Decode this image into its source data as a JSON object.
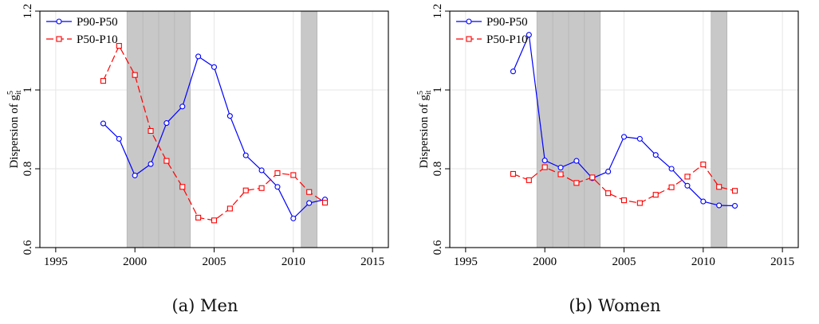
{
  "chart_data": [
    {
      "type": "line",
      "caption": "(a) Men",
      "ylabel_main": "Dispersion of g",
      "ylabel_sup": "5",
      "ylabel_sub": "it",
      "xlim": [
        1994,
        2016
      ],
      "ylim": [
        0.6,
        1.2
      ],
      "xticks": [
        1995,
        2000,
        2005,
        2010,
        2015
      ],
      "yticks": [
        0.6,
        0.8,
        1,
        1.2
      ],
      "ytick_labels": [
        "0.6",
        "0.8",
        "1",
        "1.2"
      ],
      "legend_position": "top-left",
      "grid": true,
      "shaded_periods": [
        [
          1999.5,
          2003.5
        ],
        [
          2010.5,
          2011.5
        ]
      ],
      "series": [
        {
          "name": "P90-P50",
          "color": "#0000ff",
          "marker": "circle",
          "dash": "solid",
          "x": [
            1998,
            1999,
            2000,
            2001,
            2002,
            2003,
            2004,
            2005,
            2006,
            2007,
            2008,
            2009,
            2010,
            2011,
            2012
          ],
          "y": [
            0.915,
            0.876,
            0.783,
            0.812,
            0.916,
            0.958,
            1.085,
            1.058,
            0.934,
            0.834,
            0.796,
            0.754,
            0.674,
            0.713,
            0.722
          ]
        },
        {
          "name": "P50-P10",
          "color": "#ff0000",
          "marker": "square",
          "dash": "dashed",
          "x": [
            1998,
            1999,
            2000,
            2001,
            2002,
            2003,
            2004,
            2005,
            2006,
            2007,
            2008,
            2009,
            2010,
            2011,
            2012
          ],
          "y": [
            1.023,
            1.112,
            1.038,
            0.896,
            0.82,
            0.754,
            0.676,
            0.669,
            0.699,
            0.745,
            0.751,
            0.789,
            0.784,
            0.741,
            0.714
          ]
        }
      ]
    },
    {
      "type": "line",
      "caption": "(b) Women",
      "ylabel_main": "Dispersion of g",
      "ylabel_sup": "5",
      "ylabel_sub": "it",
      "xlim": [
        1994,
        2016
      ],
      "ylim": [
        0.6,
        1.2
      ],
      "xticks": [
        1995,
        2000,
        2005,
        2010,
        2015
      ],
      "yticks": [
        0.6,
        0.8,
        1,
        1.2
      ],
      "ytick_labels": [
        "0.6",
        "0.8",
        "1",
        "1.2"
      ],
      "legend_position": "top-left",
      "grid": true,
      "shaded_periods": [
        [
          1999.5,
          2003.5
        ],
        [
          2010.5,
          2011.5
        ]
      ],
      "series": [
        {
          "name": "P90-P50",
          "color": "#0000ff",
          "marker": "circle",
          "dash": "solid",
          "x": [
            1998,
            1999,
            2000,
            2001,
            2002,
            2003,
            2004,
            2005,
            2006,
            2007,
            2008,
            2009,
            2010,
            2011,
            2012
          ],
          "y": [
            1.047,
            1.14,
            0.821,
            0.803,
            0.82,
            0.776,
            0.793,
            0.881,
            0.876,
            0.835,
            0.8,
            0.757,
            0.717,
            0.707,
            0.706
          ]
        },
        {
          "name": "P50-P10",
          "color": "#ff0000",
          "marker": "square",
          "dash": "dashed",
          "x": [
            1998,
            1999,
            2000,
            2001,
            2002,
            2003,
            2004,
            2005,
            2006,
            2007,
            2008,
            2009,
            2010,
            2011,
            2012
          ],
          "y": [
            0.787,
            0.771,
            0.804,
            0.786,
            0.764,
            0.778,
            0.738,
            0.72,
            0.713,
            0.734,
            0.753,
            0.78,
            0.811,
            0.754,
            0.744
          ]
        }
      ]
    }
  ]
}
